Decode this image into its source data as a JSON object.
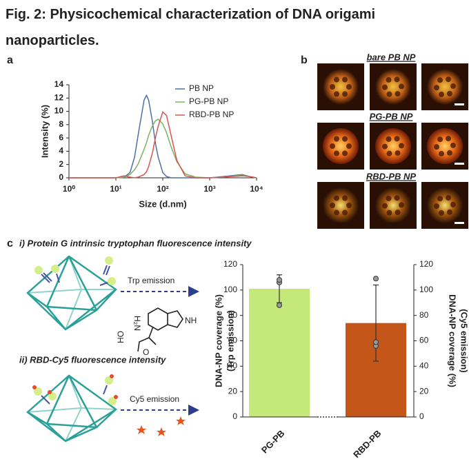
{
  "header": {
    "title": "Fig. 2: Physicochemical characterization of DNA origami nanoparticles."
  },
  "panels": {
    "a": "a",
    "b": "b",
    "c": "c"
  },
  "images": {
    "labels": [
      "bare PB NP",
      "PG-PB NP",
      "RBD-PB NP"
    ]
  },
  "diagram": {
    "i": {
      "title": "i) Protein G intrinsic tryptophan fluorescence intensity",
      "arrow": "Trp emission",
      "molecule": [
        "NH",
        "H₂N",
        "HO",
        "O"
      ]
    },
    "ii": {
      "title": "ii) RBD-Cy5 fluorescence intensity",
      "arrow": "Cy5 emission"
    }
  },
  "chart_data": [
    {
      "type": "line",
      "xlabel": "Size (d.nm)",
      "ylabel": "Intensity (%)",
      "xscale": "log",
      "x": [
        1,
        10,
        15,
        20,
        25,
        30,
        40,
        45,
        50,
        60,
        70,
        80,
        100,
        120,
        150,
        200,
        300,
        500,
        1000,
        2000,
        5000,
        7000,
        10000
      ],
      "series": [
        {
          "name": "PB NP",
          "color": "#4a6fa5",
          "values": [
            0,
            0,
            0.1,
            0.8,
            3.1,
            6.5,
            11.7,
            12.4,
            11.7,
            8.5,
            5.1,
            3.1,
            0.8,
            0.2,
            0,
            0,
            0,
            0,
            0,
            0.2,
            0.5,
            0.2,
            0
          ]
        },
        {
          "name": "PG-PB NP",
          "color": "#7ab55c",
          "values": [
            0,
            0,
            0.1,
            0.5,
            1.2,
            2.1,
            4.3,
            5.3,
            6.4,
            7.8,
            8.6,
            8.8,
            8.1,
            6.8,
            4.7,
            2.4,
            0.6,
            0.1,
            0,
            0.1,
            0.4,
            0.2,
            0
          ]
        },
        {
          "name": "RBD-PB NP",
          "color": "#d9534f",
          "values": [
            0,
            0,
            0.3,
            0.1,
            0,
            0.1,
            0.5,
            0.9,
            1.7,
            3.7,
            6.1,
            7.8,
            9.9,
            9.4,
            6.4,
            2.6,
            0.3,
            0,
            0,
            0.1,
            0.3,
            0.2,
            0
          ]
        }
      ],
      "xlim": [
        1,
        10000
      ],
      "xticks": [
        {
          "value": 1,
          "label": "10⁰"
        },
        {
          "value": 10,
          "label": "10¹"
        },
        {
          "value": 100,
          "label": "10²"
        },
        {
          "value": 1000,
          "label": "10³"
        },
        {
          "value": 10000,
          "label": "10⁴"
        }
      ],
      "ylim": [
        0,
        14
      ],
      "yticks": [
        0,
        2,
        4,
        6,
        8,
        10,
        12,
        14
      ],
      "legend": "upper right"
    },
    {
      "type": "bar",
      "ylabel": [
        "DNA-NP coverage (%)",
        "(Trp emission)"
      ],
      "y2label": [
        "DNA-NP coverage (%)",
        "(Cy5 emission)"
      ],
      "categories": [
        "PG-PB",
        "RBD-PB"
      ],
      "values": [
        101,
        74
      ],
      "errors": [
        11,
        30
      ],
      "points": [
        [
          88,
          106,
          108
        ],
        [
          56,
          59,
          109
        ]
      ],
      "colors": [
        "#c5e87b",
        "#c5561a"
      ],
      "ylim": [
        0,
        120
      ],
      "yticks": [
        0,
        20,
        40,
        60,
        80,
        100,
        120
      ],
      "y2lim": [
        0,
        120
      ],
      "y2ticks": [
        0,
        20,
        40,
        60,
        80,
        100,
        120
      ]
    }
  ]
}
